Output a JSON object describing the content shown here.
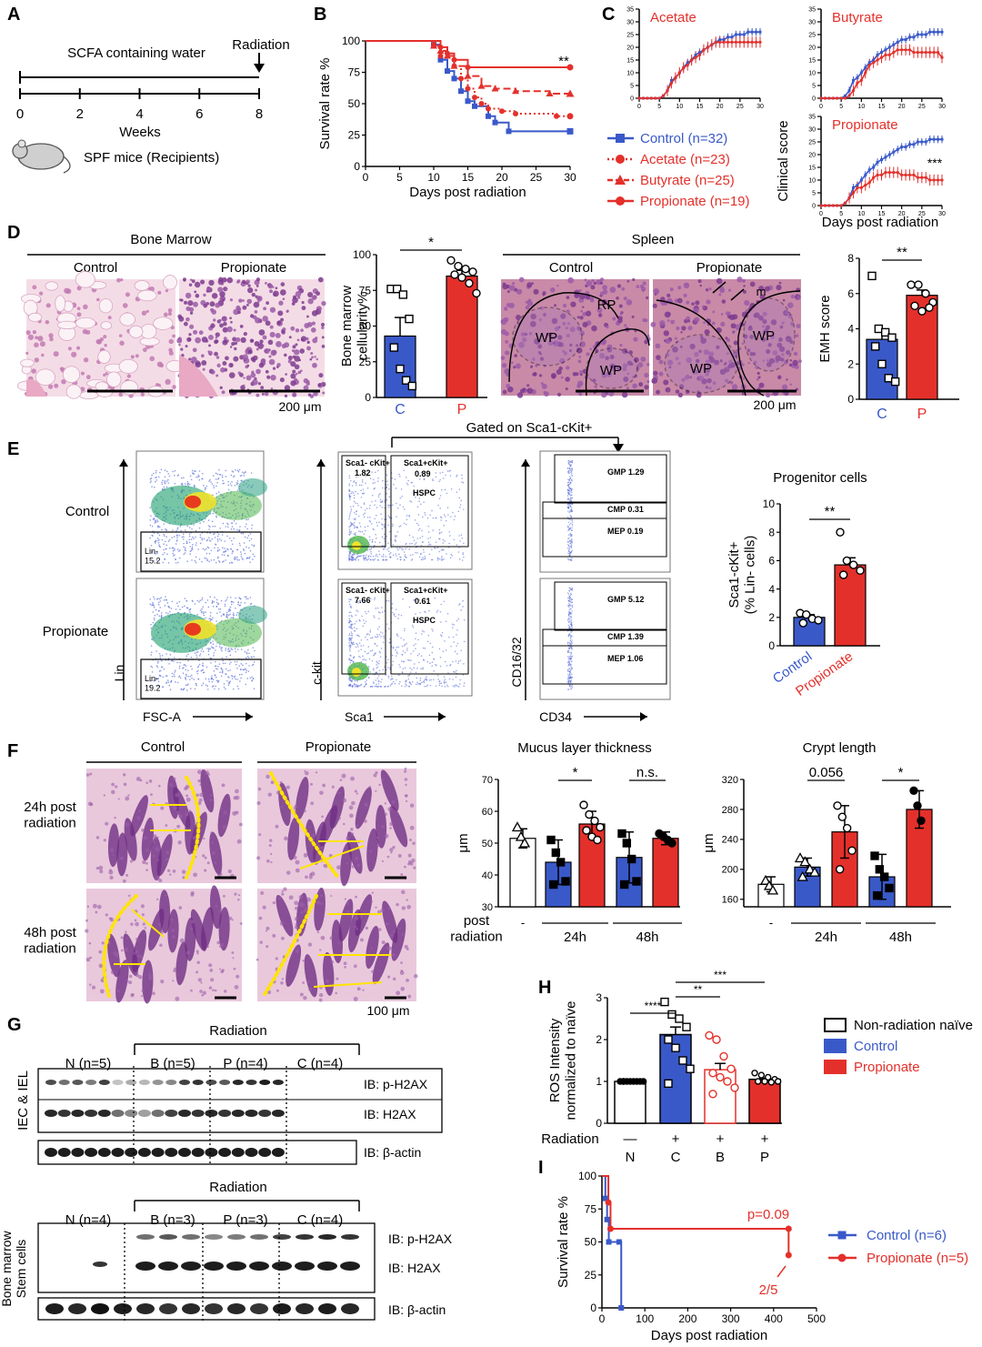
{
  "colors": {
    "control": "#3a59c9",
    "propionate": "#e4302b",
    "butyrate": "#e4302b",
    "acetate": "#e4302b",
    "he_pink": "#e9b2c9",
    "he_purple": "#8a4fa0",
    "annot": "#ffe400"
  },
  "panels": {
    "A": {
      "letter": "A",
      "label_top": "SCFA containing water",
      "label_radiation": "Radiation",
      "ticks": [
        "0",
        "2",
        "4",
        "6",
        "8"
      ],
      "axis_label": "Weeks",
      "mouse_label": "SPF mice (Recipients)"
    },
    "B": {
      "letter": "B",
      "sig": "**"
    },
    "C": {
      "letter": "C",
      "titles": [
        "Acetate",
        "Butyrate",
        "Propionate"
      ],
      "sig": "***",
      "legend": [
        "Control (n=32)",
        "Acetate (n=23)",
        "Butyrate (n=25)",
        "Propionate (n=19)"
      ]
    },
    "D": {
      "letter": "D",
      "bm_title": "Bone Marrow",
      "spleen_title": "Spleen",
      "img_labels": [
        "Control",
        "Propionate",
        "Control",
        "Propionate"
      ],
      "scale": "200 μm",
      "scale2": "200 μm",
      "spleen_marks": [
        "RP",
        "WP",
        "WP",
        "WP",
        "WP",
        "m"
      ],
      "sig_bm": "*",
      "sig_emh": "**"
    },
    "E": {
      "letter": "E",
      "gated": "Gated on Sca1-cKit+",
      "row_labels": [
        "Control",
        "Propionate"
      ],
      "axes": [
        "Lin",
        "FSC-A",
        "c-kit",
        "Sca1",
        "CD16/32",
        "CD34"
      ],
      "lin_gates": [
        "Lin-\n15.2",
        "Lin-\n19.2"
      ],
      "sca_gates": [
        [
          "Sca1- cKit+",
          "1.82",
          "Sca1+cKit+",
          "0.89",
          "HSPC"
        ],
        [
          "Sca1- cKit+",
          "7.66",
          "Sca1+cKit+",
          "0.61",
          "HSPC"
        ]
      ],
      "gmp": [
        [
          "GMP 1.29",
          "CMP 0.31",
          "MEP 0.19"
        ],
        [
          "GMP 5.12",
          "CMP 1.39",
          "MEP 1.06"
        ]
      ],
      "chart_title": "Progenitor cells",
      "sig": "**"
    },
    "F": {
      "letter": "F",
      "col_labels": [
        "Control",
        "Propionate"
      ],
      "row_labels": [
        "24h post\nradiation",
        "48h post\nradiation"
      ],
      "scale": "100 μm",
      "mucus_title": "Mucus layer thickness",
      "crypt_title": "Crypt length",
      "xrow_label": "post\nradiation",
      "groups": [
        "-",
        "24h",
        "48h"
      ],
      "sig_mucus": [
        "*",
        "n.s."
      ],
      "sig_crypt": [
        "0.056",
        "*"
      ]
    },
    "G": {
      "letter": "G",
      "top_title": "Radiation",
      "top_groups": [
        "N (n=5)",
        "B (n=5)",
        "P (n=4)",
        "C (n=4)"
      ],
      "top_blots": [
        "IB: p-H2AX",
        "IB: H2AX",
        "IB: β-actin"
      ],
      "top_side": "IEC & IEL",
      "bot_title": "Radiation",
      "bot_groups": [
        "N (n=4)",
        "B (n=3)",
        "P (n=3)",
        "C (n=4)"
      ],
      "bot_blots": [
        "IB: p-H2AX",
        "IB: H2AX",
        "IB: β-actin"
      ],
      "bot_side": "Bone marrow\nStem cells"
    },
    "H": {
      "letter": "H",
      "radiation_label": "Radiation",
      "signs": [
        "—",
        "+",
        "+",
        "+"
      ],
      "groups": [
        "N",
        "C",
        "B",
        "P"
      ],
      "sigs": [
        "****",
        "**",
        "***"
      ],
      "legend": [
        "Non-radiation naïve",
        "Control",
        "Propionate"
      ]
    },
    "I": {
      "letter": "I",
      "pval": "p=0.09",
      "frac": "2/5",
      "legend": [
        "Control (n=6)",
        "Propionate (n=5)"
      ]
    }
  },
  "chart_data": [
    {
      "id": "B",
      "type": "line",
      "xlabel": "Days post radiation",
      "ylabel": "Survival rate %",
      "xlim": [
        0,
        30
      ],
      "ylim": [
        0,
        100
      ],
      "xticks": [
        0,
        5,
        10,
        15,
        20,
        25,
        30
      ],
      "yticks": [
        0,
        25,
        50,
        75,
        100
      ],
      "series": [
        {
          "name": "Control",
          "steps": [
            [
              0,
              100
            ],
            [
              10,
              97
            ],
            [
              11,
              85
            ],
            [
              12,
              76
            ],
            [
              13,
              70
            ],
            [
              14,
              60
            ],
            [
              15,
              52
            ],
            [
              16,
              48
            ],
            [
              18,
              40
            ],
            [
              19,
              35
            ],
            [
              21,
              28
            ],
            [
              30,
              28
            ]
          ]
        },
        {
          "name": "Acetate",
          "steps": [
            [
              0,
              100
            ],
            [
              10,
              97
            ],
            [
              11,
              88
            ],
            [
              13,
              80
            ],
            [
              14,
              70
            ],
            [
              15,
              62
            ],
            [
              16,
              55
            ],
            [
              17,
              50
            ],
            [
              18,
              46
            ],
            [
              20,
              44
            ],
            [
              22,
              42
            ],
            [
              28,
              40
            ],
            [
              30,
              40
            ]
          ]
        },
        {
          "name": "Butyrate",
          "steps": [
            [
              0,
              100
            ],
            [
              10,
              96
            ],
            [
              11,
              92
            ],
            [
              12,
              88
            ],
            [
              13,
              80
            ],
            [
              15,
              72
            ],
            [
              17,
              64
            ],
            [
              19,
              62
            ],
            [
              22,
              60
            ],
            [
              27,
              58
            ],
            [
              30,
              58
            ]
          ]
        },
        {
          "name": "Propionate",
          "steps": [
            [
              0,
              100
            ],
            [
              11,
              95
            ],
            [
              12,
              90
            ],
            [
              13,
              85
            ],
            [
              15,
              79
            ],
            [
              30,
              79
            ]
          ]
        }
      ]
    },
    {
      "id": "C",
      "type": "line",
      "xlabel": "Days post radiation",
      "ylabel": "Clinical score",
      "xlim": [
        0,
        30
      ],
      "ylim": [
        0,
        35
      ],
      "xticks": [
        0,
        5,
        10,
        15,
        20,
        25,
        30
      ],
      "yticks": [
        0,
        5,
        10,
        15,
        20,
        25,
        30,
        35
      ],
      "control": [
        0,
        0,
        0,
        0,
        0,
        0,
        1,
        3,
        7,
        8,
        10,
        12,
        14,
        15,
        17,
        18,
        19,
        20,
        21,
        22,
        23,
        23,
        24,
        24,
        25,
        25,
        25,
        26,
        26,
        26,
        26
      ],
      "series": [
        {
          "name": "Acetate",
          "values": [
            0,
            0,
            0,
            0,
            0,
            0,
            1,
            3,
            6,
            8,
            10,
            12,
            13,
            15,
            16,
            17,
            19,
            20,
            21,
            22,
            22,
            22,
            22,
            22,
            22,
            22,
            22,
            22,
            22,
            22,
            22
          ]
        },
        {
          "name": "Butyrate",
          "values": [
            0,
            0,
            0,
            0,
            0,
            0,
            0,
            1,
            3,
            6,
            7,
            10,
            13,
            14,
            15,
            16,
            17,
            17,
            18,
            19,
            19,
            19,
            19,
            18,
            18,
            18,
            18,
            18,
            18,
            18,
            16
          ]
        },
        {
          "name": "Propionate",
          "values": [
            0,
            0,
            0,
            0,
            0,
            0,
            1,
            3,
            5,
            7,
            7,
            8,
            9,
            11,
            12,
            12,
            13,
            13,
            13,
            13,
            12,
            12,
            12,
            12,
            11,
            11,
            11,
            10,
            10,
            10,
            10
          ]
        }
      ]
    },
    {
      "id": "D-bm",
      "type": "bar",
      "ylabel": "Bone marrow\ncellularity%",
      "categories": [
        "C",
        "P"
      ],
      "values": [
        43,
        85
      ],
      "sem": [
        13,
        4
      ],
      "ylim": [
        0,
        100
      ],
      "yticks": [
        0,
        25,
        50,
        75,
        100
      ],
      "points": [
        [
          76,
          76,
          72,
          55,
          35,
          20,
          12,
          8
        ],
        [
          96,
          92,
          90,
          88,
          86,
          84,
          80,
          73
        ]
      ]
    },
    {
      "id": "D-emh",
      "type": "bar",
      "ylabel": "EMH score",
      "categories": [
        "C",
        "P"
      ],
      "values": [
        3.4,
        5.9
      ],
      "sem": [
        0.5,
        0.3
      ],
      "ylim": [
        0,
        8
      ],
      "yticks": [
        0,
        2,
        4,
        6,
        8
      ],
      "points": [
        [
          7,
          4,
          3.8,
          3.5,
          3,
          2,
          1.2,
          1
        ],
        [
          6.5,
          6.5,
          6,
          5.5,
          5.3,
          5,
          5.2
        ]
      ]
    },
    {
      "id": "E",
      "type": "bar",
      "ylabel": "Sca1-cKit+\n(% Lin- cells)",
      "categories": [
        "Control",
        "Propionate"
      ],
      "values": [
        2.0,
        5.7
      ],
      "sem": [
        0.2,
        0.5
      ],
      "ylim": [
        0,
        10
      ],
      "yticks": [
        0,
        2,
        4,
        6,
        8,
        10
      ],
      "points": [
        [
          2.3,
          2.2,
          1.9,
          1.8,
          1.6
        ],
        [
          8.0,
          6.0,
          5.7,
          5.3,
          5.0
        ]
      ]
    },
    {
      "id": "F-mucus",
      "type": "bar",
      "ylabel": "μm",
      "categories": [
        "-",
        "24h C",
        "24h P",
        "48h C",
        "48h P"
      ],
      "values": [
        51.5,
        44,
        56,
        45.5,
        51.5
      ],
      "sd": [
        3,
        7,
        4,
        8,
        2
      ],
      "ylim": [
        30,
        70
      ],
      "yticks": [
        30,
        40,
        50,
        60,
        70
      ]
    },
    {
      "id": "F-crypt",
      "type": "bar",
      "ylabel": "μm",
      "categories": [
        "-",
        "24h C",
        "24h P",
        "48h C",
        "48h P"
      ],
      "values": [
        180,
        203,
        250,
        190,
        280
      ],
      "sd": [
        10,
        12,
        35,
        30,
        25
      ],
      "ylim": [
        150,
        320
      ],
      "yticks": [
        160,
        200,
        240,
        280,
        320
      ]
    },
    {
      "id": "H",
      "type": "bar",
      "ylabel": "ROS Intensity\nnormalized to naïve",
      "categories": [
        "N",
        "C",
        "B",
        "P"
      ],
      "values": [
        1.0,
        2.12,
        1.28,
        1.05
      ],
      "sem": [
        0.02,
        0.18,
        0.15,
        0.03
      ],
      "ylim": [
        0,
        3
      ],
      "yticks": [
        0,
        1,
        2,
        3
      ],
      "points": [
        [
          1,
          1,
          1,
          1,
          1,
          1,
          1,
          1,
          1
        ],
        [
          2.9,
          2.6,
          2.5,
          2.3,
          2.0,
          1.8,
          1.5,
          1.3,
          0.95
        ],
        [
          2.1,
          2.0,
          1.6,
          1.3,
          1.2,
          1.1,
          1.0,
          0.85,
          0.7
        ],
        [
          1.2,
          1.15,
          1.1,
          1.05,
          1.0,
          1.0,
          0.98,
          1.0
        ]
      ]
    },
    {
      "id": "I",
      "type": "line",
      "xlabel": "Days post radiation",
      "ylabel": "Survival rate %",
      "xlim": [
        0,
        500
      ],
      "ylim": [
        0,
        100
      ],
      "xticks": [
        0,
        100,
        200,
        300,
        400,
        500
      ],
      "yticks": [
        0,
        25,
        50,
        75,
        100
      ],
      "series": [
        {
          "name": "Control (n=6)",
          "steps": [
            [
              0,
              100
            ],
            [
              8,
              83
            ],
            [
              12,
              67
            ],
            [
              16,
              50
            ],
            [
              40,
              50
            ],
            [
              45,
              0
            ]
          ]
        },
        {
          "name": "Propionate (n=5)",
          "steps": [
            [
              0,
              100
            ],
            [
              15,
              80
            ],
            [
              20,
              60
            ],
            [
              435,
              60
            ],
            [
              435,
              40
            ]
          ]
        }
      ]
    }
  ]
}
